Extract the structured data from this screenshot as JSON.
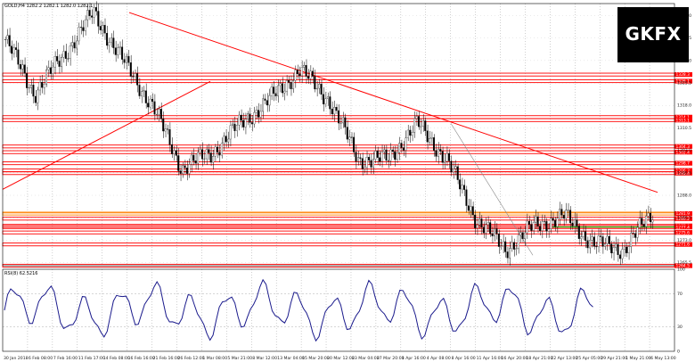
{
  "window": {
    "symbol_info": "GOLD,H4  1282.2 1282.1 1282.0 1282.1",
    "indicator_label": "RSI(8) 62.5216"
  },
  "logo": {
    "text": "GKFX"
  },
  "price_axis": {
    "labels": [
      "1348.0",
      "1340.5",
      "1333.0",
      "1325.5",
      "1318.0",
      "1310.5",
      "1303.0",
      "1295.5",
      "1288.0",
      "1280.5",
      "1273.0",
      "1265.5"
    ]
  },
  "rsi_axis": {
    "labels": [
      "100",
      "70",
      "30",
      "0"
    ]
  },
  "time_axis": {
    "labels": [
      "30 Jan 2018",
      "6 Feb 08:00",
      "7 Feb 16:00",
      "11 Feb 17:00",
      "14 Feb 08:00",
      "16 Feb 16:00",
      "21 Feb 16:00",
      "26 Feb 12:00",
      "1 Mar 08:00",
      "5 Mar 21:00",
      "8 Mar 12:00",
      "13 Mar 04:00",
      "15 Mar 20:00",
      "20 Mar 12:00",
      "23 Mar 04:00",
      "27 Mar 20:00",
      "1 Apr 16:00",
      "4 Apr 08:00",
      "8 Apr 16:00",
      "11 Apr 16:00",
      "16 Apr 20:00",
      "18 Apr 21:00",
      "22 Apr 13:00",
      "25 Apr 05:00",
      "29 Apr 21:00",
      "1 May 21:00",
      "6 May 13:00"
    ]
  },
  "levels": {
    "boxed": [
      "1328.3",
      "1326.1",
      "1314.1",
      "1313.1",
      "1304.3",
      "1302.4",
      "1298.7",
      "1296.3",
      "1295.4",
      "1281.9",
      "1280.2",
      "1277.8",
      "1277.4",
      "1275.6",
      "1271.6",
      "1264.5"
    ],
    "current_price": "1282.1"
  },
  "colors": {
    "level": "#ff0000",
    "trend": "#ff0000",
    "candles": "#000000",
    "rsi": "#1a1a8c",
    "support_green": "#00cc00",
    "current_price": "#ff8000"
  },
  "chart_data": [
    {
      "type": "candlestick",
      "symbol": "GOLD",
      "timeframe": "H4",
      "ylim": [
        1264.5,
        1352
      ],
      "grid": true,
      "key_points": {
        "x": [
          "30 Jan 2018",
          "7 Feb",
          "14 Feb",
          "16 Feb",
          "21 Feb",
          "26 Feb",
          "1 Mar",
          "5 Mar",
          "13 Mar",
          "20 Mar",
          "23 Mar",
          "27 Mar",
          "1 Apr",
          "4 Apr",
          "8 Apr",
          "11 Apr",
          "16 Apr",
          "18 Apr",
          "22 Apr",
          "25 Apr",
          "29 Apr",
          "1 May",
          "6 May"
        ],
        "close": [
          1340,
          1322,
          1335,
          1349,
          1333,
          1318,
          1297,
          1302,
          1312,
          1320,
          1330,
          1320,
          1300,
          1300,
          1312,
          1300,
          1280,
          1270,
          1278,
          1281,
          1272,
          1270,
          1282
        ]
      }
    },
    {
      "type": "line",
      "title": "RSI(8) 62.5216",
      "ylim": [
        0,
        100
      ],
      "guides": [
        70,
        30
      ]
    }
  ]
}
